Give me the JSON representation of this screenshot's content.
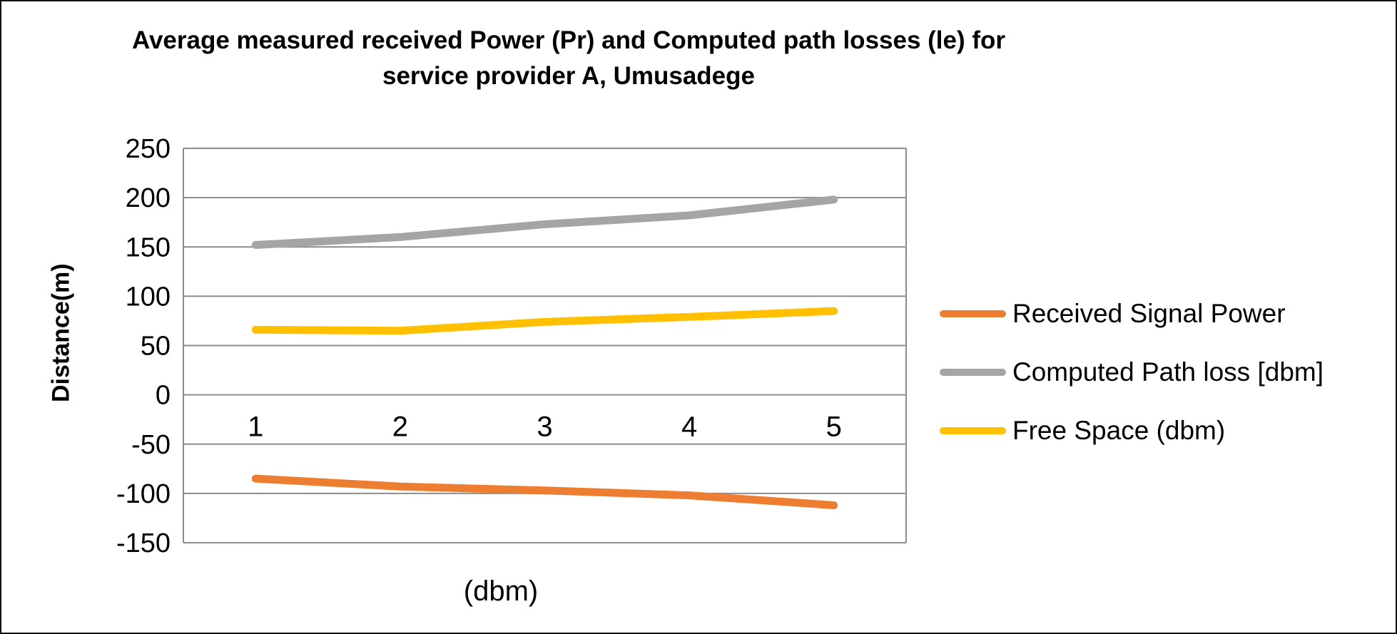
{
  "figure": {
    "background": "#ffffff",
    "border_color": "#111111"
  },
  "chart_data": {
    "type": "line",
    "title": "Average measured received Power (Pr) and Computed path losses (le) for service provider A, Umusadege",
    "title_line1": "Average measured received Power (Pr) and Computed path losses (le) for",
    "title_line2": "service provider A, Umusadege",
    "ylabel": "Distance(m)",
    "xlabel": "(dbm)",
    "categories": [
      "1",
      "2",
      "3",
      "4",
      "5"
    ],
    "y_ticks": [
      250,
      200,
      150,
      100,
      50,
      0,
      -50,
      -100,
      -150
    ],
    "ylim": [
      -150,
      250
    ],
    "grid": true,
    "legend_position": "right",
    "gridline_color": "#8c8c8c",
    "text_color": "#000000",
    "series": [
      {
        "name": "Received Signal Power",
        "color": "#ED7D31",
        "values": [
          -85,
          -93,
          -97,
          -102,
          -112
        ]
      },
      {
        "name": "Computed Path loss [dbm]",
        "color": "#A5A5A5",
        "values": [
          152,
          160,
          173,
          182,
          198
        ]
      },
      {
        "name": "Free Space (dbm)",
        "color": "#FFC000",
        "values": [
          66,
          65,
          74,
          79,
          85
        ]
      }
    ]
  }
}
